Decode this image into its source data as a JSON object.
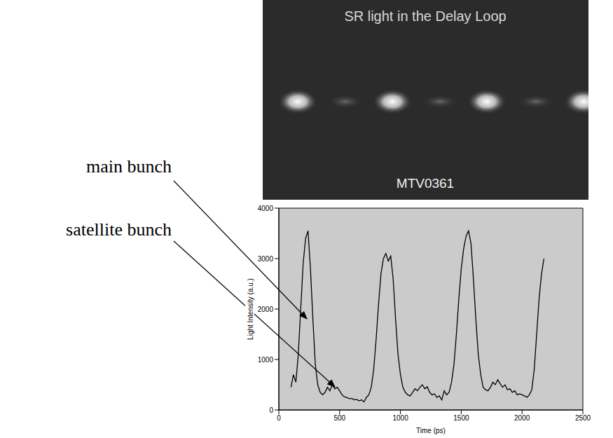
{
  "image": {
    "title": "SR light in the Delay Loop",
    "label": "MTV0361"
  },
  "chart_data": {
    "type": "line",
    "x_label": "Time (ps)",
    "y_label": "Light Intensity (a.u.)",
    "annotations": [
      "main bunch",
      "satellite bunch"
    ],
    "color": "#000000",
    "grid": false,
    "xlim": [
      0,
      2500
    ],
    "xticks": [
      0,
      500,
      1000,
      1500,
      2000,
      2500
    ],
    "ylim": [
      0,
      4000
    ],
    "yticks": [
      0,
      1000,
      2000,
      3000,
      4000
    ],
    "x": [
      100,
      120,
      140,
      160,
      180,
      200,
      220,
      240,
      260,
      280,
      300,
      320,
      340,
      360,
      380,
      400,
      420,
      440,
      460,
      480,
      500,
      520,
      540,
      560,
      580,
      600,
      620,
      640,
      660,
      680,
      700,
      720,
      740,
      760,
      780,
      800,
      820,
      840,
      860,
      880,
      900,
      920,
      940,
      960,
      980,
      1000,
      1020,
      1040,
      1060,
      1080,
      1100,
      1120,
      1140,
      1160,
      1180,
      1200,
      1220,
      1240,
      1260,
      1280,
      1300,
      1320,
      1340,
      1360,
      1380,
      1400,
      1420,
      1440,
      1460,
      1480,
      1500,
      1520,
      1540,
      1560,
      1580,
      1600,
      1620,
      1640,
      1660,
      1680,
      1700,
      1720,
      1740,
      1760,
      1780,
      1800,
      1820,
      1840,
      1860,
      1880,
      1900,
      1920,
      1940,
      1960,
      1980,
      2000,
      2020,
      2040,
      2060,
      2080,
      2100,
      2120,
      2140,
      2160,
      2180
    ],
    "values": [
      450,
      700,
      550,
      1100,
      2000,
      2900,
      3400,
      3550,
      2800,
      1800,
      900,
      500,
      350,
      300,
      350,
      450,
      380,
      500,
      420,
      450,
      380,
      300,
      260,
      250,
      220,
      230,
      200,
      210,
      180,
      200,
      160,
      250,
      300,
      450,
      800,
      1400,
      2100,
      2700,
      3000,
      3100,
      2950,
      3050,
      2600,
      1800,
      1100,
      700,
      450,
      350,
      300,
      280,
      350,
      420,
      380,
      450,
      500,
      420,
      460,
      350,
      300,
      320,
      250,
      280,
      200,
      380,
      300,
      350,
      550,
      900,
      1500,
      2200,
      2800,
      3200,
      3450,
      3550,
      3300,
      2600,
      1800,
      1100,
      700,
      450,
      400,
      380,
      450,
      550,
      500,
      600,
      520,
      450,
      500,
      400,
      420,
      350,
      380,
      300,
      320,
      300,
      280,
      250,
      300,
      400,
      800,
      1500,
      2200,
      2700,
      3000
    ]
  }
}
